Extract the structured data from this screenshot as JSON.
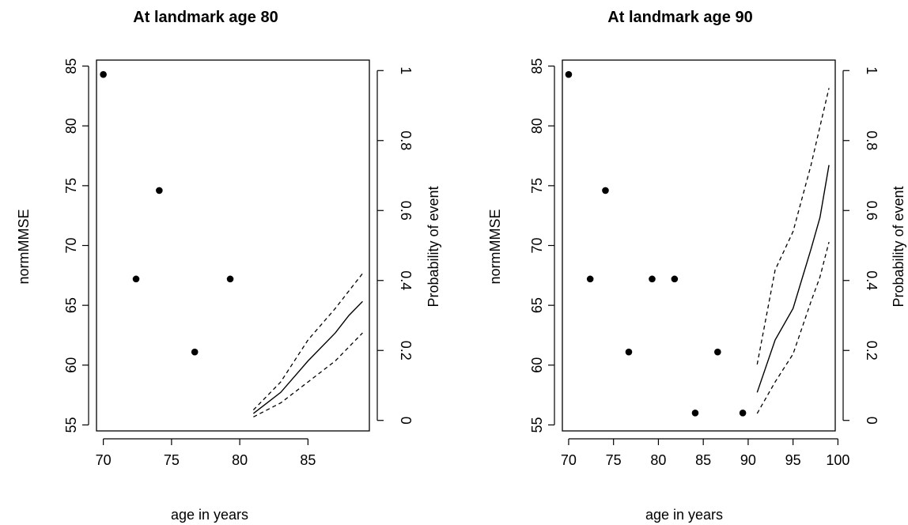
{
  "chart_data": [
    {
      "type": "scatter",
      "title": "At landmark age 80",
      "xlabel": "age in years",
      "ylabel": "normMMSE",
      "y2label": "Probability of event",
      "xlim": [
        69.5,
        89.5
      ],
      "ylim": [
        54.5,
        85.5
      ],
      "y2lim": [
        -0.03,
        1.03
      ],
      "xticks": [
        70,
        75,
        80,
        85
      ],
      "yticks": [
        55,
        60,
        65,
        70,
        75,
        80,
        85
      ],
      "y2ticks": [
        0,
        0.2,
        0.4,
        0.6,
        0.8,
        1
      ],
      "xtick_labels": [
        "70",
        "75",
        "80",
        "85"
      ],
      "ytick_labels": [
        "55",
        "60",
        "65",
        "70",
        "75",
        "80",
        "85"
      ],
      "y2tick_labels": [
        "0",
        "0.2",
        "0.4",
        "0.6",
        "0.8",
        "1"
      ],
      "grid": false,
      "points": [
        {
          "x": 70.0,
          "y": 84.3
        },
        {
          "x": 72.4,
          "y": 67.2
        },
        {
          "x": 74.1,
          "y": 74.6
        },
        {
          "x": 76.7,
          "y": 61.1
        },
        {
          "x": 79.3,
          "y": 67.2
        }
      ],
      "prediction": {
        "x": [
          81,
          83,
          85,
          87,
          88,
          89
        ],
        "estimate": [
          0.02,
          0.08,
          0.17,
          0.25,
          0.3,
          0.34
        ],
        "upper": [
          0.03,
          0.11,
          0.23,
          0.32,
          0.37,
          0.42
        ],
        "lower": [
          0.01,
          0.05,
          0.11,
          0.17,
          0.21,
          0.25
        ]
      }
    },
    {
      "type": "scatter",
      "title": "At landmark age 90",
      "xlabel": "age in years",
      "ylabel": "normMMSE",
      "y2label": "Probability of event",
      "xlim": [
        69.3,
        99.7
      ],
      "ylim": [
        54.5,
        85.5
      ],
      "y2lim": [
        -0.03,
        1.03
      ],
      "xticks": [
        70,
        75,
        80,
        85,
        90,
        95,
        100
      ],
      "yticks": [
        55,
        60,
        65,
        70,
        75,
        80,
        85
      ],
      "y2ticks": [
        0,
        0.2,
        0.4,
        0.6,
        0.8,
        1
      ],
      "xtick_labels": [
        "70",
        "75",
        "80",
        "85",
        "90",
        "95",
        "100"
      ],
      "ytick_labels": [
        "55",
        "60",
        "65",
        "70",
        "75",
        "80",
        "85"
      ],
      "y2tick_labels": [
        "0",
        "0.2",
        "0.4",
        "0.6",
        "0.8",
        "1"
      ],
      "grid": false,
      "points": [
        {
          "x": 70.0,
          "y": 84.3
        },
        {
          "x": 72.4,
          "y": 67.2
        },
        {
          "x": 74.1,
          "y": 74.6
        },
        {
          "x": 76.7,
          "y": 61.1
        },
        {
          "x": 79.3,
          "y": 67.2
        },
        {
          "x": 81.8,
          "y": 67.2
        },
        {
          "x": 84.1,
          "y": 56.0
        },
        {
          "x": 86.6,
          "y": 61.1
        },
        {
          "x": 89.4,
          "y": 56.0
        }
      ],
      "prediction": {
        "x": [
          91,
          93,
          95,
          97,
          98,
          99
        ],
        "estimate": [
          0.08,
          0.23,
          0.32,
          0.49,
          0.58,
          0.73
        ],
        "upper": [
          0.16,
          0.43,
          0.54,
          0.73,
          0.84,
          0.95
        ],
        "lower": [
          0.02,
          0.11,
          0.19,
          0.34,
          0.41,
          0.51
        ]
      }
    }
  ]
}
